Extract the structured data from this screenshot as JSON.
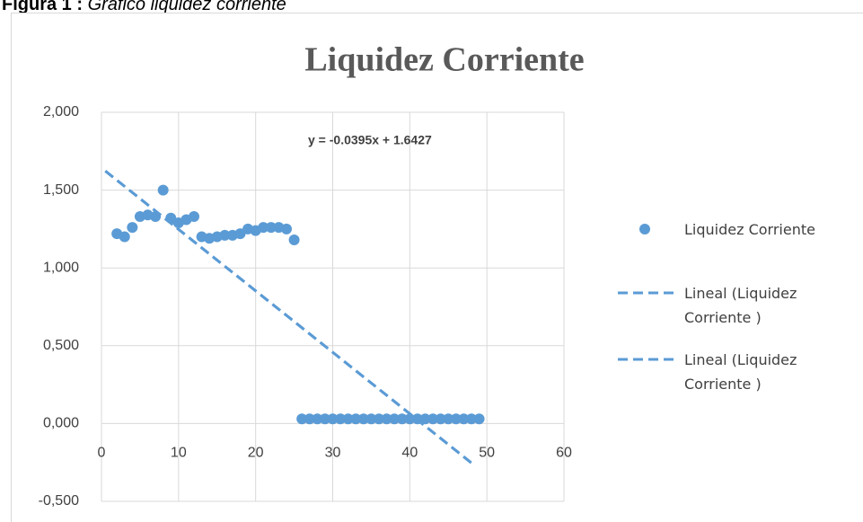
{
  "figure_label": "Figura 1 :",
  "figure_caption": "Gráfico liquidez corriente",
  "chart_data": {
    "type": "scatter",
    "title": "Liquidez Corriente",
    "annotation": "y = -0.0395x + 1.6427",
    "xlim": [
      0,
      60
    ],
    "xticks": [
      0,
      10,
      20,
      30,
      40,
      50,
      60
    ],
    "ylim": [
      -0.5,
      2
    ],
    "yticks": [
      {
        "value": -0.5,
        "label": "-0,500"
      },
      {
        "value": 0,
        "label": "0,000"
      },
      {
        "value": 0.5,
        "label": "0,500"
      },
      {
        "value": 1,
        "label": "1,000"
      },
      {
        "value": 1.5,
        "label": "1,500"
      },
      {
        "value": 2,
        "label": "2,000"
      }
    ],
    "grid": true,
    "legend": "right",
    "series": [
      {
        "name": "Liquidez Corriente",
        "color": "#5b9bd5",
        "kind": "markers",
        "x": [
          2,
          3,
          4,
          5,
          6,
          7,
          8,
          9,
          10,
          11,
          12,
          13,
          14,
          15,
          16,
          17,
          18,
          19,
          20,
          21,
          22,
          23,
          24,
          25,
          26,
          27,
          28,
          29,
          30,
          31,
          32,
          33,
          34,
          35,
          36,
          37,
          38,
          39,
          40,
          41,
          42,
          43,
          44,
          45,
          46,
          47,
          48,
          49
        ],
        "values": [
          1.22,
          1.2,
          1.26,
          1.33,
          1.34,
          1.33,
          1.5,
          1.32,
          1.29,
          1.31,
          1.33,
          1.2,
          1.19,
          1.2,
          1.21,
          1.21,
          1.22,
          1.25,
          1.24,
          1.26,
          1.26,
          1.26,
          1.25,
          1.18,
          0.03,
          0.03,
          0.03,
          0.03,
          0.03,
          0.03,
          0.03,
          0.03,
          0.03,
          0.03,
          0.03,
          0.03,
          0.03,
          0.03,
          0.03,
          0.03,
          0.03,
          0.03,
          0.03,
          0.03,
          0.03,
          0.03,
          0.03,
          0.03
        ]
      },
      {
        "name": "Lineal (Liquidez Corriente )",
        "color": "#5b9bd5",
        "kind": "dashed",
        "x": [
          0.5,
          48.5
        ],
        "values": [
          1.623,
          -0.273
        ]
      },
      {
        "name": "Lineal (Liquidez Corriente )",
        "color": "#5b9bd5",
        "kind": "dashed",
        "x": [
          0.5,
          48.5
        ],
        "values": [
          1.623,
          -0.273
        ]
      }
    ]
  }
}
